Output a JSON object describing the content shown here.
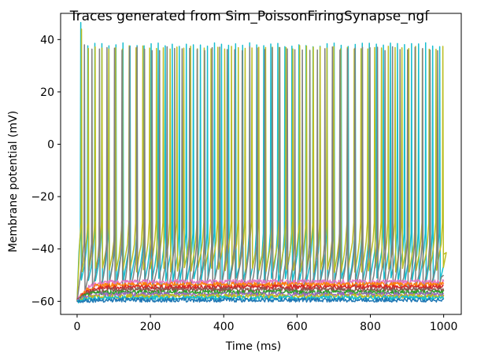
{
  "chart_data": {
    "type": "line",
    "title": "Traces generated from Sim_PoissonFiringSynapse_ngf",
    "xlabel": "Time (ms)",
    "ylabel": "Membrane potential (mV)",
    "xlim": [
      -45,
      1048
    ],
    "ylim": [
      -65,
      50
    ],
    "xticks": [
      0,
      200,
      400,
      600,
      800,
      1000
    ],
    "xtick_labels": [
      "0",
      "200",
      "400",
      "600",
      "800",
      "1000"
    ],
    "yticks": [
      -60,
      -40,
      -20,
      0,
      20,
      40
    ],
    "ytick_labels": [
      "−60",
      "−40",
      "−20",
      "0",
      "20",
      "40"
    ],
    "grid": false,
    "legend": "none",
    "time_range": [
      0,
      1000
    ],
    "resting_potential": -60,
    "series": [
      {
        "color": "#17becf",
        "kind": "spiking",
        "first_spike_ms": 10,
        "isi_ms": 19.2,
        "peak_mv": 38,
        "first_peak_mv": 46.5,
        "trough_mv": -46
      },
      {
        "color": "#bcbd22",
        "kind": "spiking",
        "first_spike_ms": 12,
        "isi_ms": 18.6,
        "peak_mv": 37,
        "first_peak_mv": 44,
        "trough_mv": -42
      },
      {
        "color": "#7f7f7f",
        "kind": "spiking",
        "first_spike_ms": 20,
        "isi_ms": 20.5,
        "peak_mv": 36.5,
        "first_peak_mv": 38,
        "trough_mv": -50
      },
      {
        "color": "#e377c2",
        "kind": "subthreshold",
        "plateau_mv": -52.5
      },
      {
        "color": "#ff7f0e",
        "kind": "subthreshold",
        "plateau_mv": -53.5
      },
      {
        "color": "#d62728",
        "kind": "subthreshold",
        "plateau_mv": -54.5
      },
      {
        "color": "#8c564b",
        "kind": "subthreshold",
        "plateau_mv": -55.5
      },
      {
        "color": "#2ca02c",
        "kind": "subthreshold",
        "plateau_mv": -56.5
      },
      {
        "color": "#9467bd",
        "kind": "subthreshold",
        "plateau_mv": -57.3
      },
      {
        "color": "#bcbd22",
        "kind": "subthreshold",
        "plateau_mv": -58.0
      },
      {
        "color": "#17becf",
        "kind": "subthreshold",
        "plateau_mv": -58.7
      },
      {
        "color": "#1f77b4",
        "kind": "subthreshold",
        "plateau_mv": -59.5
      }
    ]
  }
}
